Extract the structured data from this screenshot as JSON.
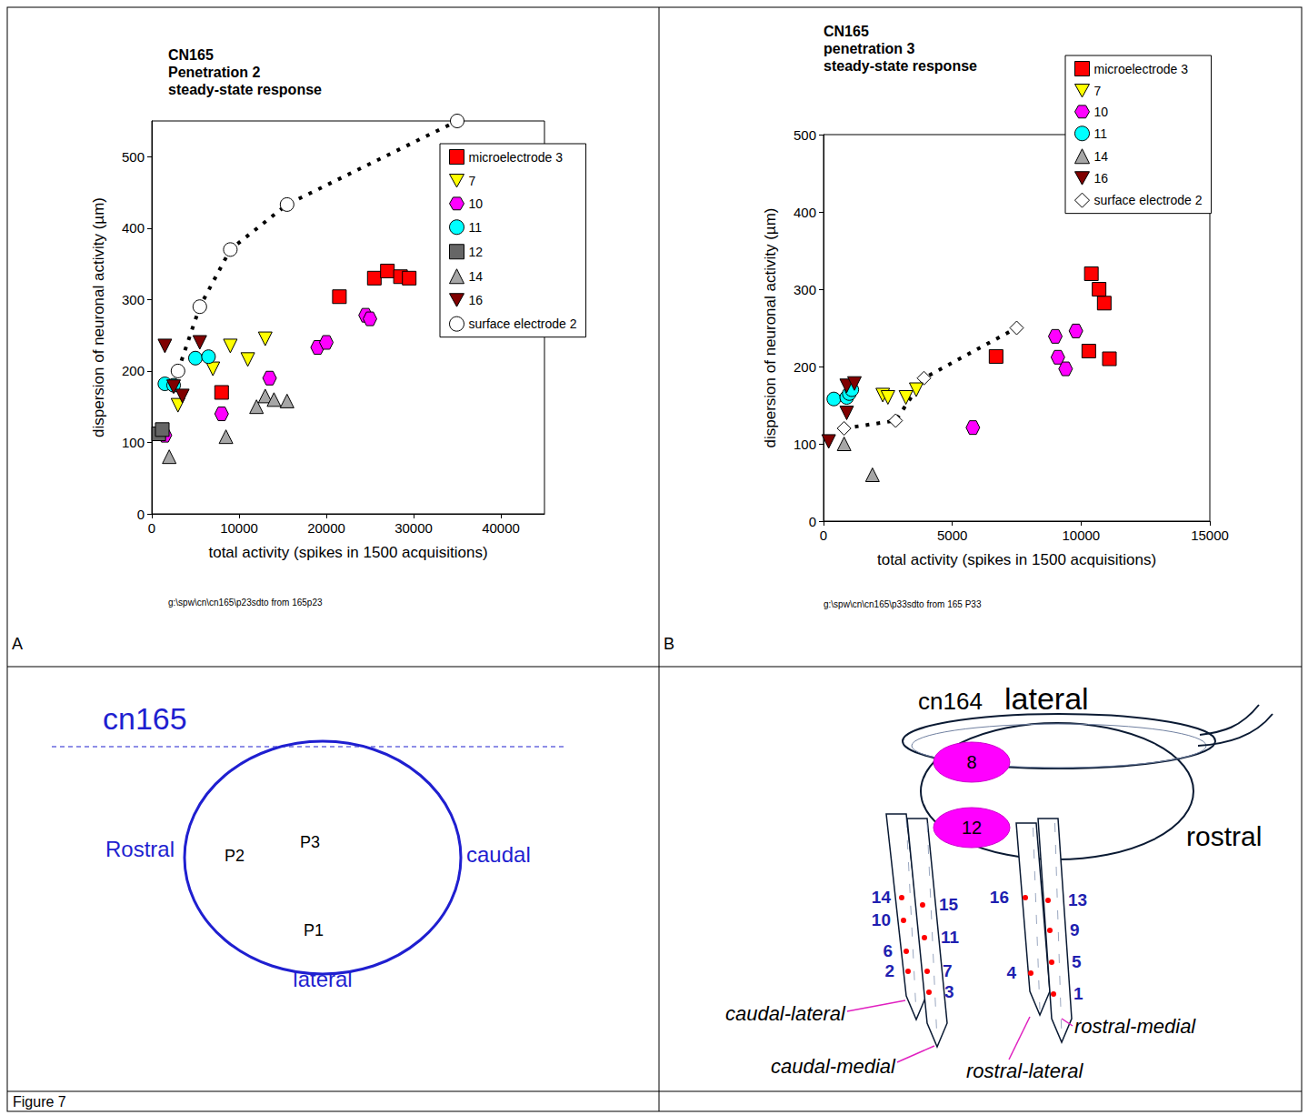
{
  "figure_label": "Figure 7",
  "chart_data": [
    {
      "panel": "A",
      "type": "scatter",
      "title": "CN165\nPenetration 2\nsteady-state response",
      "x_label": "total activity (spikes in 1500 acquisitions)",
      "y_label": "dispersion of neuronal activity (µm)",
      "note": "g:\\spw\\cn\\cn165\\p23sdto from 165p23",
      "xlim": [
        0,
        45000
      ],
      "xticks": [
        0,
        10000,
        20000,
        30000,
        40000
      ],
      "ylim": [
        0,
        550
      ],
      "yticks": [
        0,
        100,
        200,
        300,
        400,
        500
      ],
      "grid": false,
      "legend": "top-right",
      "series": [
        {
          "name": "microelectrode 3",
          "color": "#ff0000",
          "marker": "square",
          "values": [
            [
              8000,
              170
            ],
            [
              21500,
              304
            ],
            [
              25500,
              330
            ],
            [
              27000,
              340
            ],
            [
              28500,
              332
            ],
            [
              29500,
              330
            ]
          ]
        },
        {
          "name": "7",
          "color": "#ffff00",
          "marker": "triangle_down",
          "values": [
            [
              3000,
              152
            ],
            [
              7000,
              203
            ],
            [
              9000,
              235
            ],
            [
              11000,
              216
            ],
            [
              13000,
              245
            ]
          ]
        },
        {
          "name": "10",
          "color": "#ff00ff",
          "marker": "hexagon",
          "values": [
            [
              1500,
              110
            ],
            [
              8000,
              140
            ],
            [
              13500,
              190
            ],
            [
              19000,
              233
            ],
            [
              20000,
              240
            ],
            [
              24500,
              278
            ],
            [
              25000,
              273
            ]
          ]
        },
        {
          "name": "11",
          "color": "#00ffff",
          "marker": "circle",
          "values": [
            [
              1500,
              182
            ],
            [
              2500,
              180
            ],
            [
              5000,
              218
            ],
            [
              6500,
              220
            ]
          ]
        },
        {
          "name": "12",
          "color": "#666666",
          "marker": "square",
          "values": [
            [
              800,
              112
            ],
            [
              1200,
              118
            ]
          ]
        },
        {
          "name": "14",
          "color": "#a6a6a6",
          "marker": "triangle",
          "values": [
            [
              2000,
              80
            ],
            [
              8500,
              108
            ],
            [
              12000,
              150
            ],
            [
              13000,
              165
            ],
            [
              14000,
              160
            ],
            [
              15500,
              158
            ]
          ]
        },
        {
          "name": "16",
          "color": "#800000",
          "marker": "triangle_down",
          "values": [
            [
              1500,
              235
            ],
            [
              2500,
              178
            ],
            [
              3500,
              165
            ],
            [
              5500,
              240
            ]
          ]
        },
        {
          "name": "surface electrode 2",
          "color": "#ffffff",
          "marker": "circle",
          "line_style": "dotted",
          "values": [
            [
              3000,
              200
            ],
            [
              5500,
              290
            ],
            [
              9000,
              370
            ],
            [
              15500,
              433
            ],
            [
              35000,
              550
            ]
          ]
        }
      ]
    },
    {
      "panel": "B",
      "type": "scatter",
      "title": "CN165\npenetration 3\nsteady-state response",
      "x_label": "total activity (spikes in 1500 acquisitions)",
      "y_label": "dispersion of neuronal activity (µm)",
      "note": "g:\\spw\\cn\\cn165\\p33sdto from 165 P33",
      "xlim": [
        0,
        15000
      ],
      "xticks": [
        0,
        5000,
        10000,
        15000
      ],
      "ylim": [
        0,
        500
      ],
      "yticks": [
        0,
        100,
        200,
        300,
        400,
        500
      ],
      "grid": false,
      "legend": "top-right",
      "series": [
        {
          "name": "microelectrode 3",
          "color": "#ff0000",
          "marker": "square",
          "values": [
            [
              6700,
              213
            ],
            [
              10400,
              320
            ],
            [
              10700,
              300
            ],
            [
              10900,
              282
            ],
            [
              10300,
              220
            ],
            [
              11100,
              210
            ]
          ]
        },
        {
          "name": "7",
          "color": "#ffff00",
          "marker": "triangle_down",
          "values": [
            [
              2300,
              163
            ],
            [
              2500,
              160
            ],
            [
              3200,
              160
            ],
            [
              3600,
              170
            ]
          ]
        },
        {
          "name": "10",
          "color": "#ff00ff",
          "marker": "hexagon",
          "values": [
            [
              5800,
              121
            ],
            [
              9000,
              239
            ],
            [
              9100,
              212
            ],
            [
              9400,
              197
            ],
            [
              9800,
              246
            ]
          ]
        },
        {
          "name": "11",
          "color": "#00ffff",
          "marker": "circle",
          "values": [
            [
              400,
              158
            ],
            [
              900,
              160
            ],
            [
              1000,
              165
            ],
            [
              1100,
              170
            ]
          ]
        },
        {
          "name": "14",
          "color": "#a6a6a6",
          "marker": "triangle",
          "values": [
            [
              800,
              100
            ],
            [
              1900,
              60
            ]
          ]
        },
        {
          "name": "16",
          "color": "#800000",
          "marker": "triangle_down",
          "values": [
            [
              200,
              103
            ],
            [
              900,
              140
            ],
            [
              900,
              175
            ],
            [
              1200,
              178
            ]
          ]
        },
        {
          "name": "surface electrode 2",
          "color": "#ffffff",
          "marker": "diamond",
          "line_style": "dotted",
          "values": [
            [
              800,
              120
            ],
            [
              2800,
              130
            ],
            [
              3900,
              185
            ],
            [
              7500,
              250
            ]
          ]
        }
      ]
    }
  ],
  "diagrams": [
    {
      "title": "cn165",
      "orientation_labels": {
        "rostral": "Rostral",
        "caudal": "caudal",
        "lateral": "lateral"
      },
      "penetrations": [
        "P2",
        "P3",
        "P1"
      ]
    },
    {
      "title": "cn164",
      "orientation_labels": {
        "lateral": "lateral",
        "rostral": "rostral"
      },
      "surface_electrodes": [
        "8",
        "12"
      ],
      "shanks": [
        {
          "name": "caudal-lateral",
          "sites": [
            "14",
            "10",
            "6",
            "2"
          ]
        },
        {
          "name": "caudal-medial",
          "sites": [
            "15",
            "11",
            "7",
            "3"
          ]
        },
        {
          "name": "rostral-lateral",
          "sites": [
            "16",
            "4"
          ]
        },
        {
          "name": "rostral-medial",
          "sites": [
            "13",
            "9",
            "5",
            "1"
          ]
        }
      ]
    }
  ]
}
